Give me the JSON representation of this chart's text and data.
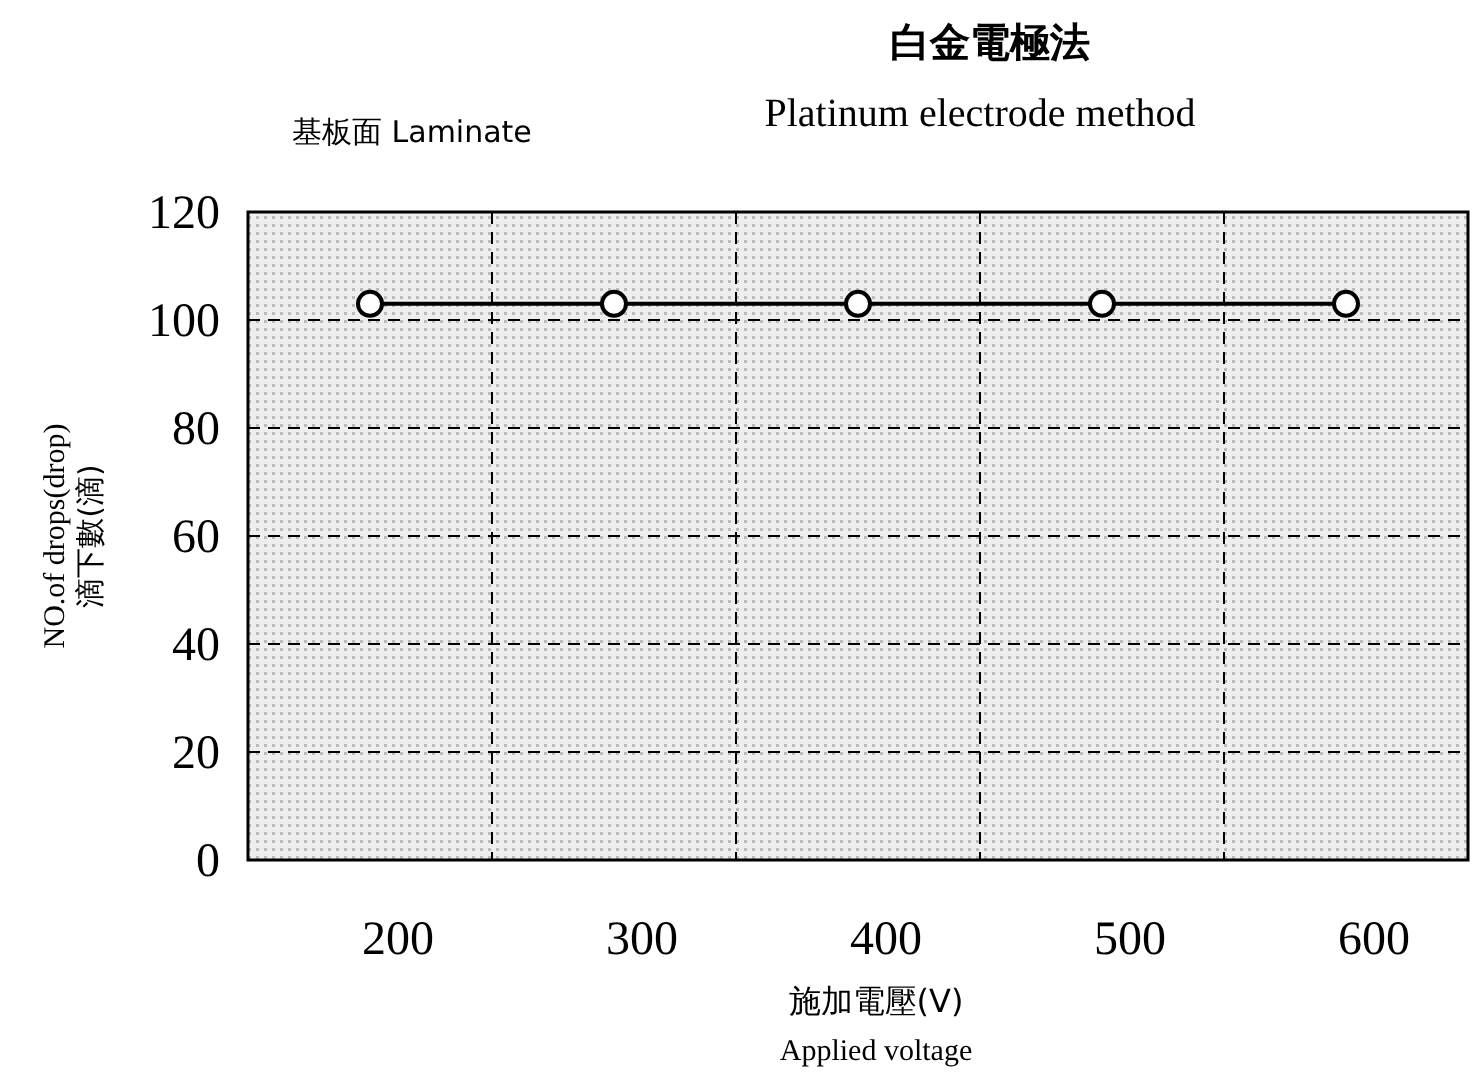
{
  "chart_data": {
    "type": "line",
    "title": "白金電極法",
    "subtitle": "Platinum electrode method",
    "annotations": [
      "基板面  Laminate"
    ],
    "xlabel": "施加電壓(V)\nApplied voltage",
    "ylabel": "NO.of drops(drop)\n滴下數(滴)",
    "categories": [
      "200",
      "300",
      "400",
      "500",
      "600"
    ],
    "series": [
      {
        "color": "#000000",
        "values": [
          103,
          103,
          103,
          103,
          103
        ]
      }
    ],
    "ylim": [
      0,
      120
    ],
    "yticks": [
      0,
      20,
      40,
      60,
      80,
      100,
      120
    ],
    "grid": true,
    "marker": "circle",
    "line_style": "solid"
  }
}
